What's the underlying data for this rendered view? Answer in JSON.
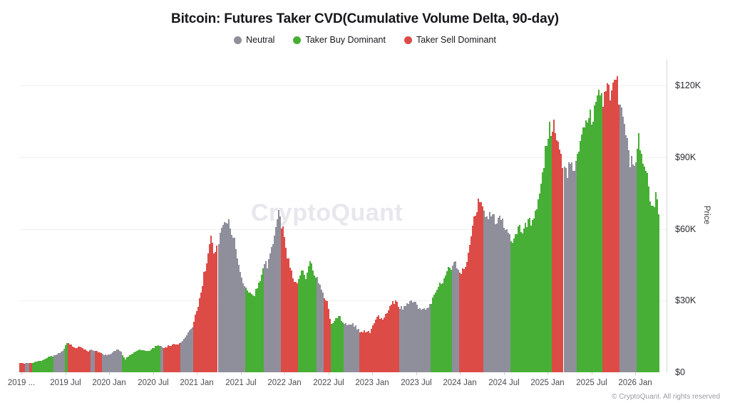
{
  "title": "Bitcoin: Futures Taker CVD(Cumulative Volume Delta, 90-day)",
  "legend": [
    {
      "key": "neutral",
      "label": "Neutral",
      "color": "#8F8F9C"
    },
    {
      "key": "buy",
      "label": "Taker Buy Dominant",
      "color": "#47AF36"
    },
    {
      "key": "sell",
      "label": "Taker Sell Dominant",
      "color": "#DD4B47"
    }
  ],
  "watermark": "CryptoQuant",
  "footer": "© CryptoQuant. All rights reserved",
  "y_axis": {
    "label": "Price",
    "ticks": [
      {
        "text": "$120K",
        "value": 120
      },
      {
        "text": "$90K",
        "value": 90
      },
      {
        "text": "$60K",
        "value": 60
      },
      {
        "text": "$30K",
        "value": 30
      },
      {
        "text": "$0",
        "value": 0
      }
    ]
  },
  "x_axis": {
    "ticks": [
      "2019 ...",
      "2019 Jul",
      "2020 Jan",
      "2020 Jul",
      "2021 Jan",
      "2021 Jul",
      "2022 Jan",
      "2022 Jul",
      "2023 Jan",
      "2023 Jul",
      "2024 Jan",
      "2024 Jul",
      "2025 Jan",
      "2025 Jul",
      "2026 Jan"
    ]
  },
  "chart_data": {
    "type": "bar",
    "title": "Bitcoin: Futures Taker CVD(Cumulative Volume Delta, 90-day)",
    "ylabel": "Price",
    "ylim": [
      0,
      130
    ],
    "y_unit": "USD thousands",
    "x_unit": "months since 2019-01",
    "x_range": [
      -0.3,
      87.1
    ],
    "grid": "horizontal, every 30K",
    "legend_position": "top-center",
    "regime_colors": {
      "g": "#8F8F9C",
      "G": "#47AF36",
      "R": "#DD4B47"
    },
    "regime_names": {
      "g": "Neutral",
      "G": "Taker Buy Dominant",
      "R": "Taker Sell Dominant"
    },
    "points": [
      [
        -0.3,
        3.9,
        "R"
      ],
      [
        0.4,
        3.8,
        "g"
      ],
      [
        0.9,
        3.9,
        "R"
      ],
      [
        1.4,
        4.0,
        "G"
      ],
      [
        2.2,
        4.6,
        "G"
      ],
      [
        3.0,
        5.3,
        "G"
      ],
      [
        3.6,
        6.3,
        "G"
      ],
      [
        4.2,
        6.8,
        "g"
      ],
      [
        4.9,
        7.6,
        "g"
      ],
      [
        5.5,
        8.6,
        "g"
      ],
      [
        5.9,
        11.0,
        "G"
      ],
      [
        6.2,
        12.8,
        "R"
      ],
      [
        6.8,
        11.3,
        "R"
      ],
      [
        7.4,
        9.8,
        "R"
      ],
      [
        7.9,
        11.0,
        "R"
      ],
      [
        8.5,
        9.9,
        "R"
      ],
      [
        9.0,
        8.5,
        "R"
      ],
      [
        9.4,
        9.4,
        "g"
      ],
      [
        9.9,
        9.2,
        "R"
      ],
      [
        10.4,
        8.6,
        "R"
      ],
      [
        10.9,
        7.8,
        "g"
      ],
      [
        11.6,
        7.1,
        "g"
      ],
      [
        12.3,
        8.0,
        "g"
      ],
      [
        13.0,
        9.4,
        "g"
      ],
      [
        13.6,
        8.8,
        "G"
      ],
      [
        14.1,
        5.1,
        "G"
      ],
      [
        14.6,
        6.9,
        "G"
      ],
      [
        15.3,
        8.3,
        "G"
      ],
      [
        16.1,
        9.4,
        "G"
      ],
      [
        16.9,
        9.1,
        "G"
      ],
      [
        17.7,
        9.3,
        "G"
      ],
      [
        18.3,
        11.2,
        "G"
      ],
      [
        18.9,
        11.0,
        "g"
      ],
      [
        19.4,
        10.4,
        "R"
      ],
      [
        20.0,
        10.9,
        "R"
      ],
      [
        20.6,
        11.6,
        "R"
      ],
      [
        21.2,
        11.2,
        "R"
      ],
      [
        21.7,
        12.6,
        "g"
      ],
      [
        22.2,
        14.0,
        "g"
      ],
      [
        22.8,
        17.0,
        "g"
      ],
      [
        23.4,
        19.5,
        "R"
      ],
      [
        23.9,
        25.0,
        "R"
      ],
      [
        24.4,
        31.0,
        "R"
      ],
      [
        24.9,
        40.0,
        "R"
      ],
      [
        25.4,
        48.0,
        "R"
      ],
      [
        25.9,
        56.5,
        "R"
      ],
      [
        26.3,
        50.0,
        "R"
      ],
      [
        26.8,
        54.0,
        "g"
      ],
      [
        27.4,
        60.5,
        "g"
      ],
      [
        28.0,
        63.5,
        "g"
      ],
      [
        28.6,
        58.0,
        "g"
      ],
      [
        29.1,
        55.0,
        "g"
      ],
      [
        29.6,
        46.0,
        "g"
      ],
      [
        30.1,
        37.5,
        "g"
      ],
      [
        30.5,
        35.5,
        "G"
      ],
      [
        31.1,
        33.8,
        "G"
      ],
      [
        31.7,
        31.5,
        "G"
      ],
      [
        32.2,
        36.5,
        "G"
      ],
      [
        32.7,
        40.5,
        "G"
      ],
      [
        33.1,
        46.0,
        "g"
      ],
      [
        33.5,
        43.5,
        "g"
      ],
      [
        34.0,
        50.5,
        "g"
      ],
      [
        34.5,
        58.0,
        "g"
      ],
      [
        34.9,
        66.0,
        "g"
      ],
      [
        35.3,
        63.5,
        "R"
      ],
      [
        35.8,
        57.5,
        "R"
      ],
      [
        36.3,
        48.5,
        "R"
      ],
      [
        36.8,
        42.5,
        "R"
      ],
      [
        37.3,
        36.5,
        "R"
      ],
      [
        37.8,
        38.5,
        "G"
      ],
      [
        38.3,
        43.5,
        "G"
      ],
      [
        38.8,
        40.0,
        "G"
      ],
      [
        39.3,
        46.5,
        "G"
      ],
      [
        39.8,
        43.0,
        "G"
      ],
      [
        40.3,
        39.5,
        "g"
      ],
      [
        40.8,
        36.5,
        "g"
      ],
      [
        41.3,
        31.5,
        "R"
      ],
      [
        41.8,
        29.5,
        "R"
      ],
      [
        42.2,
        20.5,
        "G"
      ],
      [
        42.7,
        21.5,
        "G"
      ],
      [
        43.3,
        24.0,
        "G"
      ],
      [
        43.9,
        21.0,
        "g"
      ],
      [
        44.5,
        19.8,
        "g"
      ],
      [
        45.1,
        20.3,
        "g"
      ],
      [
        45.7,
        19.3,
        "g"
      ],
      [
        46.2,
        16.6,
        "R"
      ],
      [
        46.9,
        17.3,
        "R"
      ],
      [
        47.6,
        16.9,
        "R"
      ],
      [
        48.2,
        21.0,
        "R"
      ],
      [
        48.7,
        23.3,
        "R"
      ],
      [
        49.3,
        22.0,
        "R"
      ],
      [
        49.9,
        24.5,
        "R"
      ],
      [
        50.5,
        28.5,
        "R"
      ],
      [
        51.1,
        29.8,
        "R"
      ],
      [
        51.7,
        27.3,
        "g"
      ],
      [
        52.4,
        27.0,
        "g"
      ],
      [
        53.1,
        30.5,
        "g"
      ],
      [
        53.8,
        29.3,
        "g"
      ],
      [
        54.5,
        26.3,
        "g"
      ],
      [
        55.2,
        26.8,
        "g"
      ],
      [
        55.9,
        27.8,
        "G"
      ],
      [
        56.5,
        34.0,
        "G"
      ],
      [
        57.1,
        36.5,
        "G"
      ],
      [
        57.7,
        38.0,
        "G"
      ],
      [
        58.3,
        43.5,
        "G"
      ],
      [
        58.8,
        44.0,
        "g"
      ],
      [
        59.3,
        46.8,
        "g"
      ],
      [
        59.8,
        42.5,
        "R"
      ],
      [
        60.2,
        40.5,
        "R"
      ],
      [
        60.7,
        44.0,
        "R"
      ],
      [
        61.2,
        51.5,
        "R"
      ],
      [
        61.7,
        62.5,
        "R"
      ],
      [
        62.2,
        68.5,
        "R"
      ],
      [
        62.7,
        73.0,
        "R"
      ],
      [
        63.2,
        68.0,
        "g"
      ],
      [
        63.8,
        64.5,
        "g"
      ],
      [
        64.4,
        67.0,
        "g"
      ],
      [
        65.0,
        61.5,
        "g"
      ],
      [
        65.6,
        65.5,
        "g"
      ],
      [
        66.2,
        60.0,
        "g"
      ],
      [
        66.8,
        57.0,
        "G"
      ],
      [
        67.4,
        54.5,
        "G"
      ],
      [
        68.0,
        61.0,
        "G"
      ],
      [
        68.6,
        58.5,
        "G"
      ],
      [
        69.2,
        63.5,
        "G"
      ],
      [
        69.8,
        62.5,
        "G"
      ],
      [
        70.4,
        68.0,
        "G"
      ],
      [
        71.0,
        76.0,
        "G"
      ],
      [
        71.6,
        91.0,
        "G"
      ],
      [
        72.1,
        101.0,
        "G"
      ],
      [
        72.5,
        98.5,
        "R"
      ],
      [
        72.9,
        104.0,
        "R"
      ],
      [
        73.3,
        95.5,
        "R"
      ],
      [
        73.7,
        91.0,
        "R"
      ],
      [
        74.1,
        86.0,
        "g"
      ],
      [
        74.5,
        82.0,
        "g"
      ],
      [
        74.9,
        87.5,
        "g"
      ],
      [
        75.3,
        83.5,
        "g"
      ],
      [
        75.8,
        88.0,
        "G"
      ],
      [
        76.3,
        95.5,
        "G"
      ],
      [
        76.9,
        104.0,
        "G"
      ],
      [
        77.5,
        108.5,
        "G"
      ],
      [
        78.0,
        105.5,
        "G"
      ],
      [
        78.5,
        112.0,
        "G"
      ],
      [
        79.0,
        117.5,
        "G"
      ],
      [
        79.4,
        113.0,
        "R"
      ],
      [
        79.9,
        121.5,
        "R"
      ],
      [
        80.4,
        116.0,
        "R"
      ],
      [
        80.9,
        125.0,
        "R"
      ],
      [
        81.3,
        119.0,
        "R"
      ],
      [
        81.7,
        111.0,
        "g"
      ],
      [
        82.2,
        107.0,
        "g"
      ],
      [
        82.7,
        97.0,
        "g"
      ],
      [
        83.2,
        87.5,
        "g"
      ],
      [
        83.7,
        84.5,
        "g"
      ],
      [
        84.1,
        90.0,
        "G"
      ],
      [
        84.5,
        96.5,
        "G"
      ],
      [
        85.0,
        87.5,
        "G"
      ],
      [
        85.5,
        79.5,
        "G"
      ],
      [
        86.0,
        71.5,
        "G"
      ],
      [
        86.4,
        67.5,
        "G"
      ],
      [
        86.8,
        72.5,
        "G"
      ],
      [
        87.1,
        66.5,
        "G"
      ]
    ]
  }
}
